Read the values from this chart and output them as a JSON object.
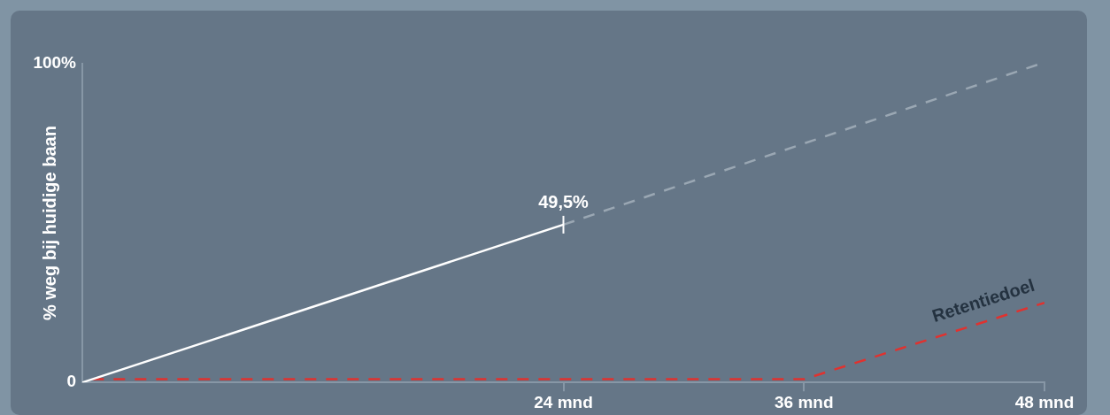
{
  "chart_data": {
    "type": "line",
    "ylabel": "% weg bij huidige baan",
    "xlim": [
      0,
      48
    ],
    "xticks": [
      {
        "value": 24,
        "label": "24 mnd"
      },
      {
        "value": 36,
        "label": "36 mnd"
      },
      {
        "value": 48,
        "label": "48 mnd"
      }
    ],
    "ylim": [
      0,
      100
    ],
    "yticks": [
      {
        "value": 0,
        "label": "0"
      },
      {
        "value": 100,
        "label": "100%"
      }
    ],
    "grid": false,
    "legend": false,
    "marker": "none",
    "series": [
      {
        "color": "#ffffff",
        "line_style": "solid",
        "x": [
          0,
          24
        ],
        "values": [
          0,
          49.5
        ],
        "value_labels": [
          null,
          "49,5%"
        ]
      },
      {
        "color": "#9aa7b3",
        "line_style": "dashed",
        "x": [
          24,
          47.8
        ],
        "values": [
          49.5,
          100
        ]
      },
      {
        "name": "Retentiedoel",
        "color": "#e0322f",
        "line_style": "dashed",
        "x": [
          0.5,
          36,
          48
        ],
        "values": [
          1,
          1,
          25
        ]
      }
    ]
  }
}
